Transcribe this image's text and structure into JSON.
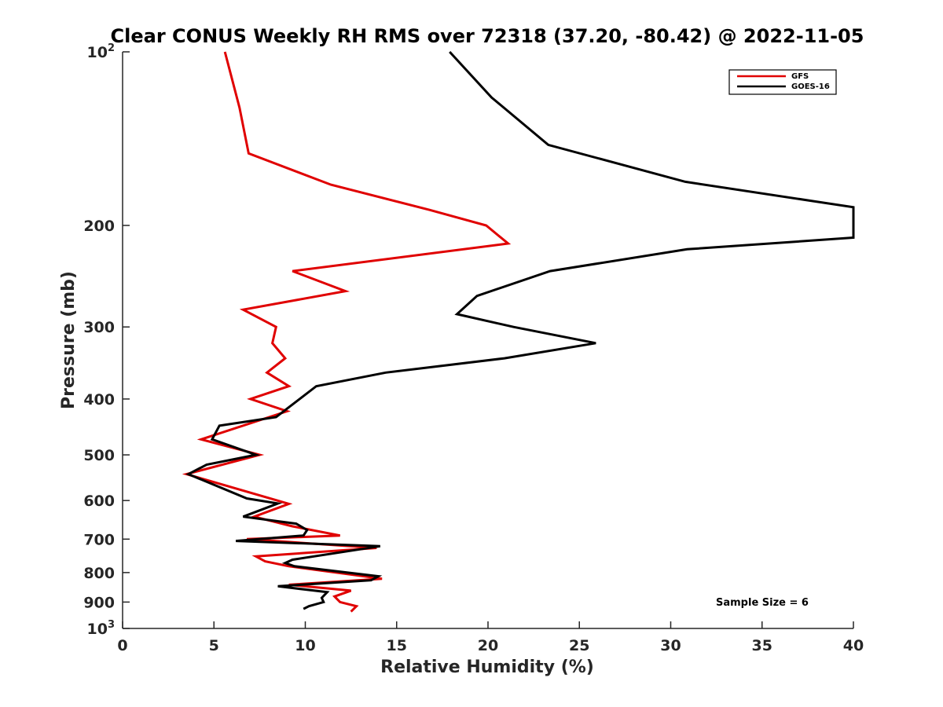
{
  "chart_data": {
    "type": "line",
    "title": "Clear CONUS Weekly RH RMS over 72318 (37.20, -80.42) @ 2022-11-05",
    "xlabel": "Relative Humidity (%)",
    "ylabel": "Pressure (mb)",
    "xlim": [
      0,
      40
    ],
    "ylim": [
      100,
      1000
    ],
    "y_scale": "log",
    "y_reversed": true,
    "grid": false,
    "legend_position": "top-right",
    "xticks": [
      0,
      5,
      10,
      15,
      20,
      25,
      30,
      35,
      40
    ],
    "yticks": [
      {
        "value": 100,
        "base": "10",
        "exp": "2"
      },
      {
        "value": 200,
        "label": "200"
      },
      {
        "value": 300,
        "label": "300"
      },
      {
        "value": 400,
        "label": "400"
      },
      {
        "value": 500,
        "label": "500"
      },
      {
        "value": 600,
        "label": "600"
      },
      {
        "value": 700,
        "label": "700"
      },
      {
        "value": 800,
        "label": "800"
      },
      {
        "value": 900,
        "label": "900"
      },
      {
        "value": 1000,
        "base": "10",
        "exp": "3"
      }
    ],
    "series": [
      {
        "name": "GFS",
        "color": "#e00000",
        "points": [
          [
            5.6,
            100
          ],
          [
            6.4,
            125
          ],
          [
            6.9,
            150
          ],
          [
            11.4,
            170
          ],
          [
            16.8,
            188
          ],
          [
            19.9,
            200
          ],
          [
            21.1,
            215
          ],
          [
            9.3,
            240
          ],
          [
            12.2,
            260
          ],
          [
            6.6,
            280
          ],
          [
            8.4,
            300
          ],
          [
            8.2,
            320
          ],
          [
            8.9,
            340
          ],
          [
            7.9,
            360
          ],
          [
            9.1,
            380
          ],
          [
            7.0,
            400
          ],
          [
            9.0,
            420
          ],
          [
            4.3,
            470
          ],
          [
            7.5,
            500
          ],
          [
            3.5,
            540
          ],
          [
            9.1,
            608
          ],
          [
            7.2,
            640
          ],
          [
            9.3,
            665
          ],
          [
            11.9,
            690
          ],
          [
            6.8,
            700
          ],
          [
            13.9,
            725
          ],
          [
            7.3,
            750
          ],
          [
            7.8,
            765
          ],
          [
            9.1,
            780
          ],
          [
            14.2,
            820
          ],
          [
            9.1,
            840
          ],
          [
            12.5,
            860
          ],
          [
            11.6,
            880
          ],
          [
            11.9,
            900
          ],
          [
            12.8,
            915
          ],
          [
            12.5,
            935
          ]
        ]
      },
      {
        "name": "GOES-16",
        "color": "#000000",
        "points": [
          [
            17.9,
            100
          ],
          [
            20.2,
            120
          ],
          [
            23.3,
            145
          ],
          [
            30.8,
            168
          ],
          [
            40,
            186
          ],
          [
            40,
            210
          ],
          [
            30.9,
            220
          ],
          [
            23.4,
            240
          ],
          [
            19.4,
            265
          ],
          [
            18.3,
            285
          ],
          [
            21.4,
            300
          ],
          [
            25.9,
            320
          ],
          [
            20.9,
            340
          ],
          [
            14.4,
            360
          ],
          [
            10.6,
            380
          ],
          [
            8.4,
            430
          ],
          [
            5.3,
            445
          ],
          [
            4.9,
            470
          ],
          [
            7.3,
            500
          ],
          [
            4.6,
            520
          ],
          [
            3.6,
            540
          ],
          [
            6.8,
            595
          ],
          [
            8.5,
            607
          ],
          [
            6.6,
            640
          ],
          [
            9.5,
            658
          ],
          [
            10.1,
            675
          ],
          [
            9.9,
            690
          ],
          [
            6.2,
            705
          ],
          [
            14.1,
            720
          ],
          [
            9.3,
            760
          ],
          [
            8.9,
            770
          ],
          [
            9.4,
            780
          ],
          [
            14.0,
            812
          ],
          [
            13.6,
            825
          ],
          [
            8.5,
            845
          ],
          [
            11.2,
            865
          ],
          [
            10.9,
            885
          ],
          [
            11.0,
            900
          ],
          [
            10.2,
            915
          ],
          [
            9.9,
            925
          ]
        ]
      }
    ],
    "annotation": "Sample Size = 6"
  }
}
